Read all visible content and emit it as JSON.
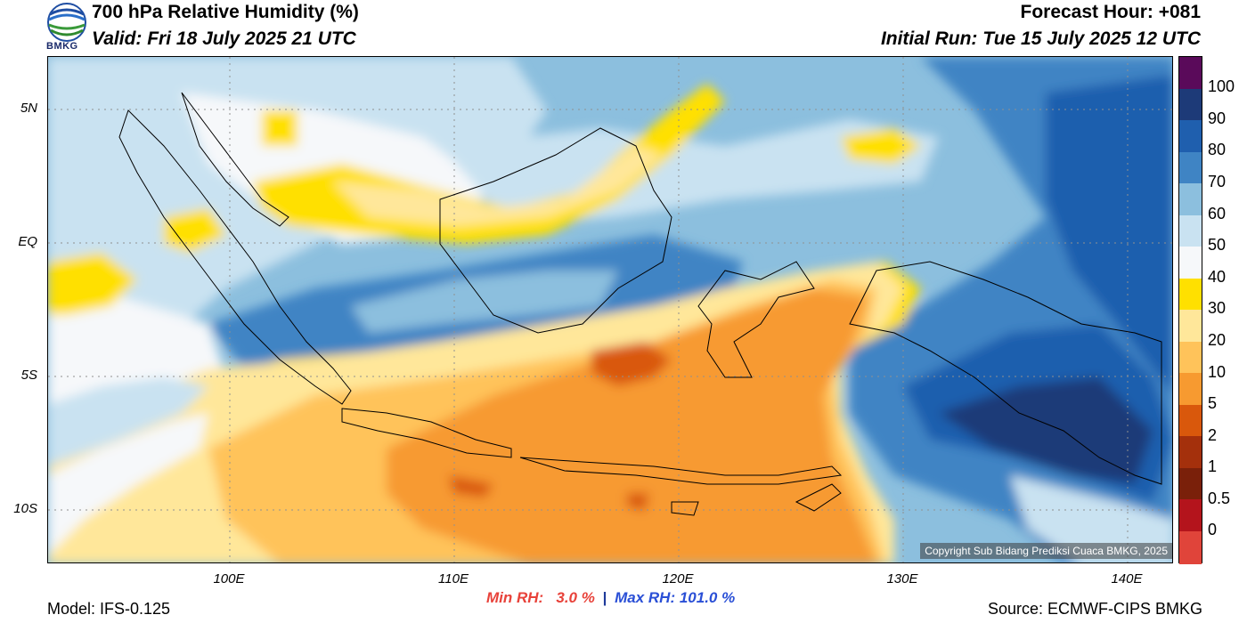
{
  "header": {
    "title": "700 hPa Relative Humidity (%)",
    "valid": "Valid: Fri 18 July 2025 21 UTC",
    "forecast_hour": "Forecast Hour: +081",
    "initial_run": "Initial Run: Tue 15 July 2025 12 UTC",
    "logo_text": "BMKG"
  },
  "axes": {
    "lat_labels": [
      "5N",
      "EQ",
      "5S",
      "10S"
    ],
    "lon_labels": [
      "100E",
      "110E",
      "120E",
      "130E",
      "140E"
    ]
  },
  "colorbar": {
    "labels": [
      "100",
      "90",
      "80",
      "70",
      "60",
      "50",
      "40",
      "30",
      "20",
      "10",
      "5",
      "2",
      "1",
      "0.5",
      "0"
    ],
    "colors": [
      "#5a0a5a",
      "#1d3a78",
      "#1f5fae",
      "#3f84c4",
      "#8cbfde",
      "#c9e2f1",
      "#f6f8fa",
      "#ffe000",
      "#ffe79a",
      "#ffc35a",
      "#f79a30",
      "#d9580c",
      "#a4300c",
      "#7a200a",
      "#b4141c",
      "#e0443a"
    ]
  },
  "copyright": "Copyright Sub Bidang Prediksi Cuaca BMKG, 2025",
  "footer": {
    "model": "Model: IFS-0.125",
    "min_rh": "Min RH:   3.0 %",
    "separator": "|",
    "max_rh": "Max RH: 101.0 %",
    "source": "Source: ECMWF-CIPS BMKG"
  }
}
